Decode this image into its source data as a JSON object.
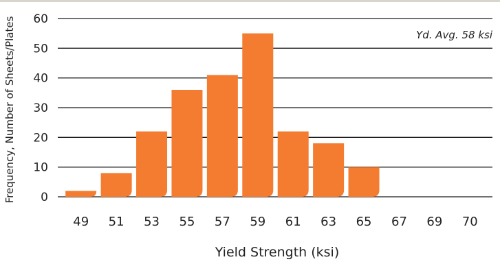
{
  "colors": {
    "bar": "#F47C30",
    "axis": "#1a1a1a",
    "text": "#222222",
    "topbar": "#d9d4cc"
  },
  "chart_data": {
    "type": "bar",
    "categories": [
      "49",
      "51",
      "53",
      "55",
      "57",
      "59",
      "61",
      "63",
      "65",
      "67",
      "69",
      "70"
    ],
    "values": [
      2,
      8,
      22,
      36,
      41,
      55,
      22,
      18,
      10,
      0,
      0,
      0
    ],
    "title": "",
    "xlabel": "Yield Strength (ksi)",
    "ylabel": "Frequency, Number of Sheets/Plates",
    "ylim": [
      0,
      60
    ],
    "yticks": [
      0,
      10,
      20,
      30,
      40,
      50,
      60
    ],
    "grid": true,
    "annotation": "Yd. Avg. 58 ksi"
  }
}
